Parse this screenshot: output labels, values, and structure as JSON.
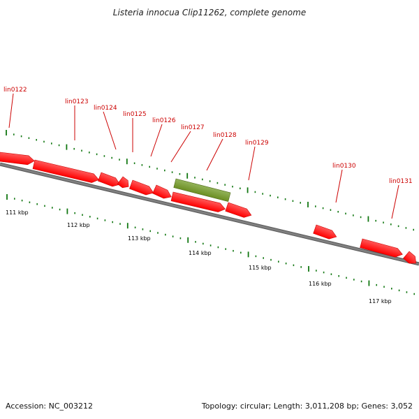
{
  "title": "Listeria innocua Clip11262, complete genome",
  "genes": [
    {
      "id": "lin0122",
      "strand": "+",
      "colors": [
        "#ff0000",
        "#ff5a5a"
      ]
    },
    {
      "id": "lin0123",
      "strand": "+",
      "colors": [
        "#ff0000",
        "#ff5a5a"
      ]
    },
    {
      "id": "lin0124",
      "strand": "+",
      "colors": [
        "#ff0000",
        "#ff5a5a"
      ]
    },
    {
      "id": "lin0125",
      "strand": "+",
      "colors": [
        "#ff0000",
        "#ff5a5a"
      ]
    },
    {
      "id": "lin0126",
      "strand": "+",
      "colors": [
        "#ff0000",
        "#ff5a5a"
      ]
    },
    {
      "id": "lin0127",
      "strand": "+",
      "colors": [
        "#ff0000",
        "#ff5a5a"
      ]
    },
    {
      "id": "lin0128",
      "strand": "none",
      "colors": [
        "#6b8e23",
        "#93b35a"
      ]
    },
    {
      "id": "lin0129",
      "strand": "+",
      "colors": [
        "#ff0000",
        "#ff5a5a"
      ]
    },
    {
      "id": "lin0130",
      "strand": "+",
      "colors": [
        "#ff0000",
        "#ff5a5a"
      ]
    },
    {
      "id": "lin0131",
      "strand": "+",
      "colors": [
        "#ff0000",
        "#ff5a5a"
      ]
    }
  ],
  "ruler": {
    "labels": [
      "111 kbp",
      "112 kbp",
      "113 kbp",
      "114 kbp",
      "115 kbp",
      "116 kbp",
      "117 kbp"
    ]
  },
  "colors": {
    "backbone": "#808080",
    "backbone_edge": "#555555",
    "ticks": "#117711",
    "label_text": "#cc0000"
  },
  "footer": {
    "accession": "Accession: NC_003212",
    "summary": "Topology: circular; Length: 3,011,208 bp; Genes: 3,052"
  }
}
